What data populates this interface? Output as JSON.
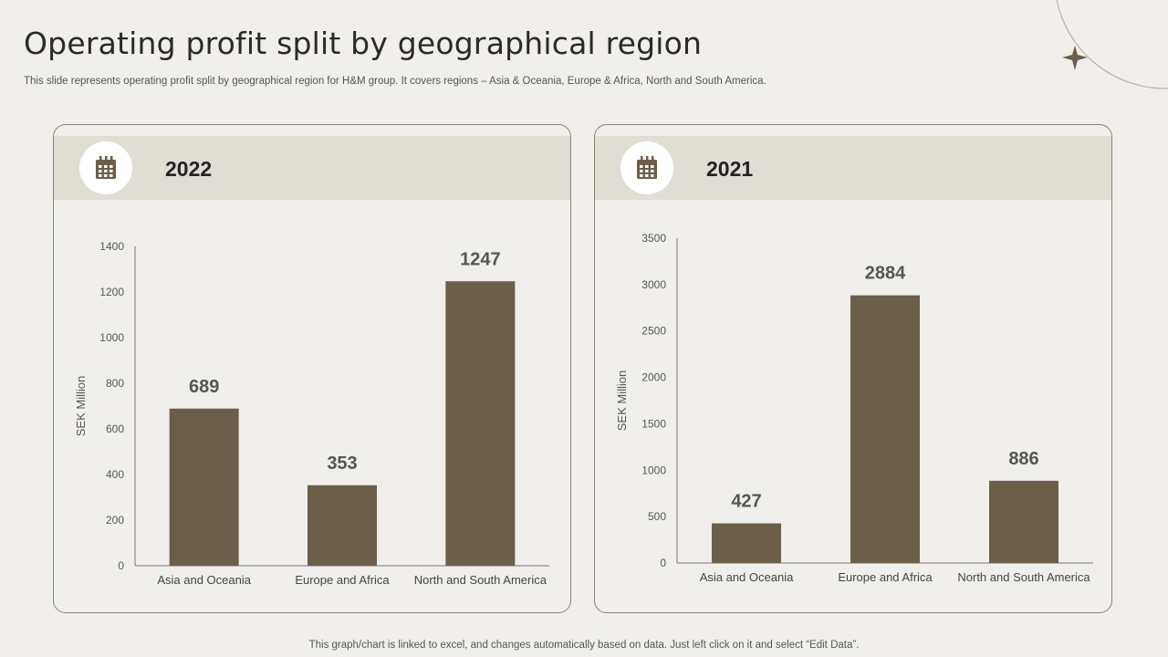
{
  "slide": {
    "title": "Operating profit split by geographical region",
    "subtitle": "This slide represents operating profit split by geographical region for H&M group. It covers regions – Asia & Oceania, Europe & Africa,  North and South America.",
    "footer": "This graph/chart is linked to excel,  and changes automatically based on data. Just left click on it and select “Edit Data”."
  },
  "colors": {
    "bar": "#6b5f4a",
    "panel_header": "#e0ddd5",
    "panel_border": "#8a8373",
    "axis": "#7a7a7a",
    "background": "#f0efeb"
  },
  "panels": [
    {
      "year": "2022",
      "icon": "calendar-icon"
    },
    {
      "year": "2021",
      "icon": "calendar-icon"
    }
  ],
  "chart_data": [
    {
      "type": "bar",
      "categories": [
        "Asia and Oceania",
        "Europe and Africa",
        "North and South America"
      ],
      "values": [
        689,
        353,
        1247
      ],
      "ylabel": "SEK Million",
      "ylim": [
        0,
        1400
      ],
      "yticks": [
        0,
        200,
        400,
        600,
        800,
        1000,
        1200,
        1400
      ],
      "data_labels": true,
      "grid": false
    },
    {
      "type": "bar",
      "categories": [
        "Asia and Oceania",
        "Europe and Africa",
        "North and South America"
      ],
      "values": [
        427,
        2884,
        886
      ],
      "ylabel": "SEK Million",
      "ylim": [
        0,
        3500
      ],
      "yticks": [
        0,
        500,
        1000,
        1500,
        2000,
        2500,
        3000,
        3500
      ],
      "data_labels": true,
      "grid": false
    }
  ]
}
